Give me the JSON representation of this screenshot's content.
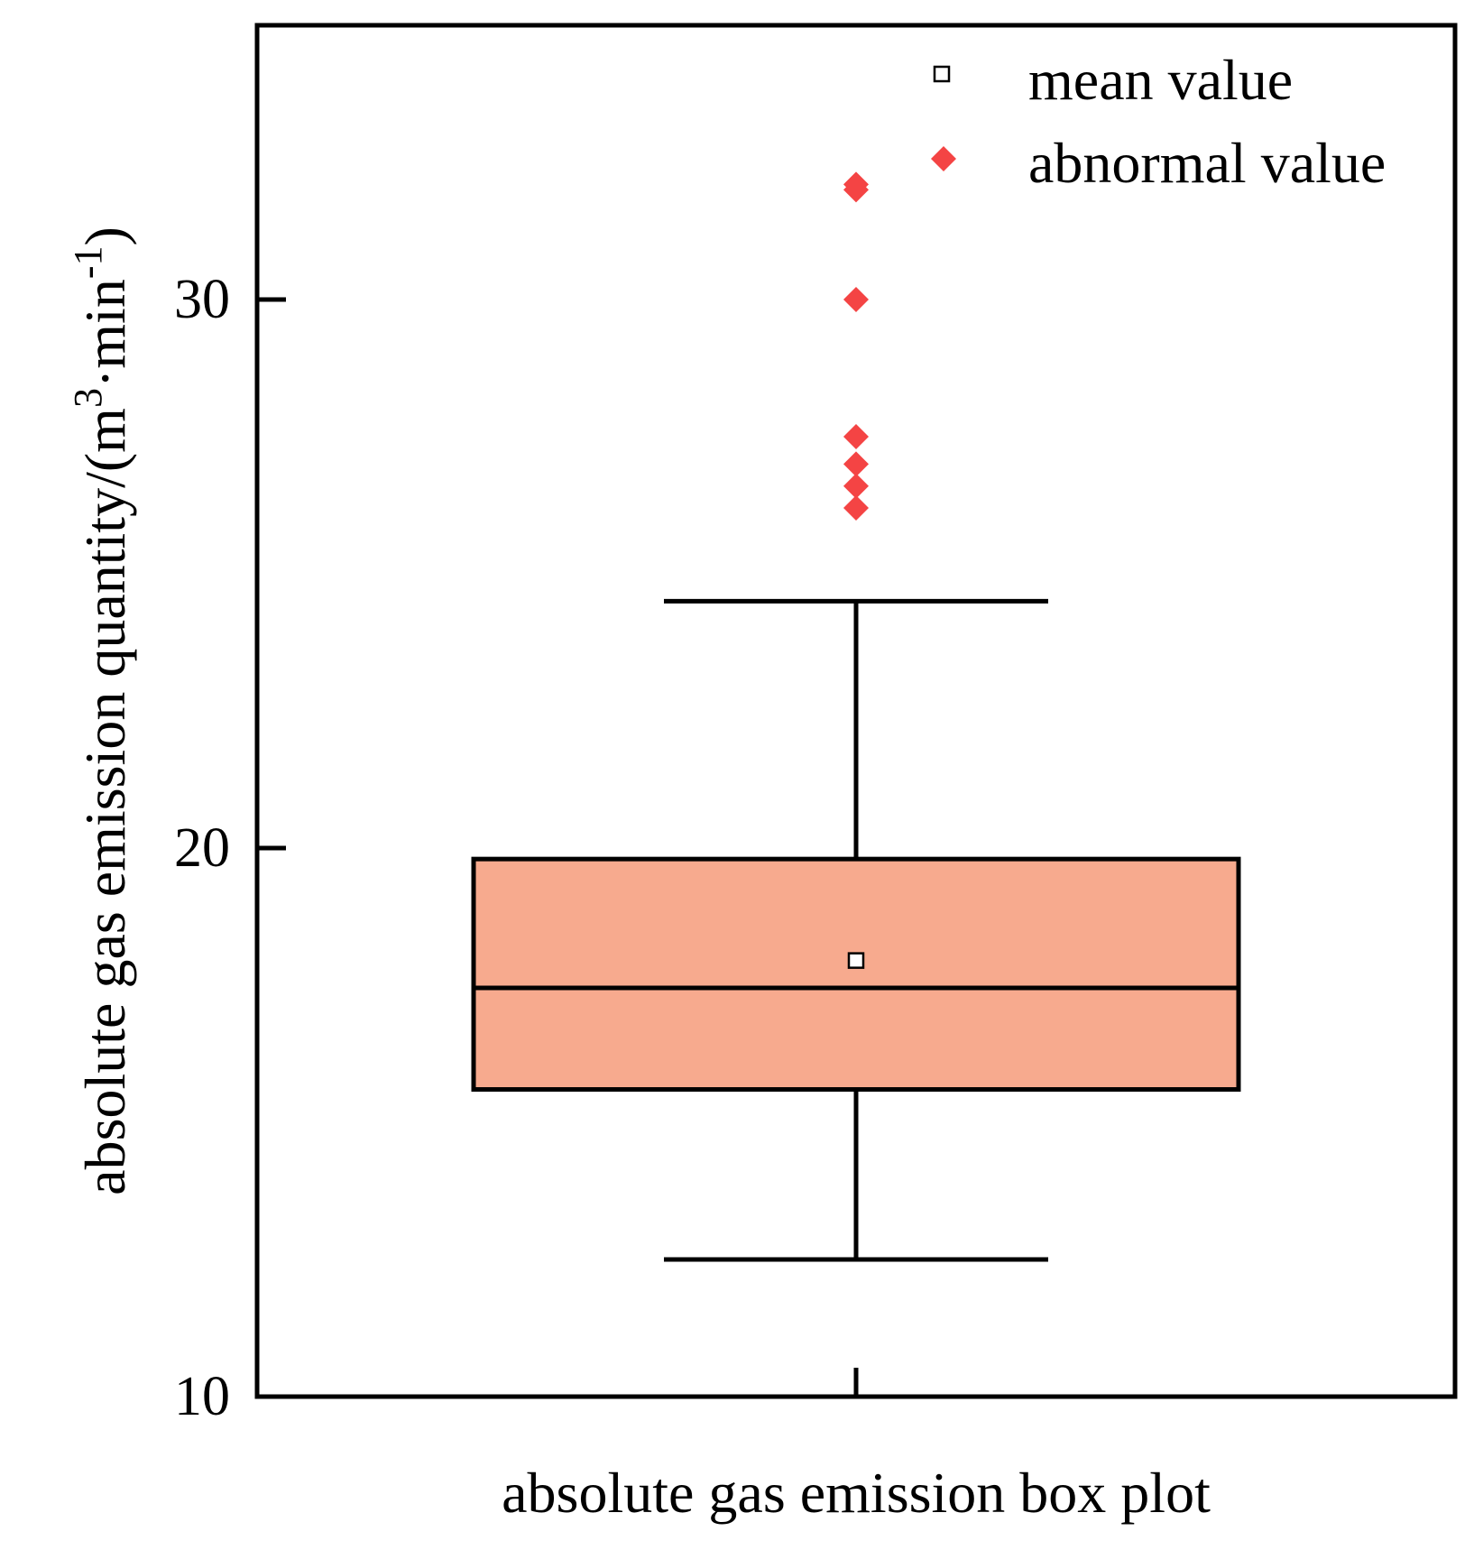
{
  "chart_data": {
    "type": "box",
    "xlabel": "absolute gas emission box plot",
    "ylabel": {
      "main": "absolute gas emission quantity/(m",
      "sup1": "3",
      "mid": "·min",
      "sup2": "-1",
      "end": ")"
    },
    "ylim": [
      10,
      35
    ],
    "yticks": [
      10,
      20,
      30
    ],
    "legend": {
      "position": "top-right",
      "items": [
        {
          "label": "mean value",
          "marker": "open-square"
        },
        {
          "label": "abnormal value",
          "marker": "red-diamond"
        }
      ]
    },
    "box": {
      "whisker_low": 12.5,
      "q1": 15.6,
      "median": 17.45,
      "q3": 19.8,
      "whisker_high": 24.5,
      "mean": 17.95,
      "outliers": [
        32.1,
        32.0,
        30.0,
        27.5,
        27.0,
        26.6,
        26.2
      ],
      "fill_color": "#f7aa8e",
      "outlier_color": "#f44444"
    }
  }
}
